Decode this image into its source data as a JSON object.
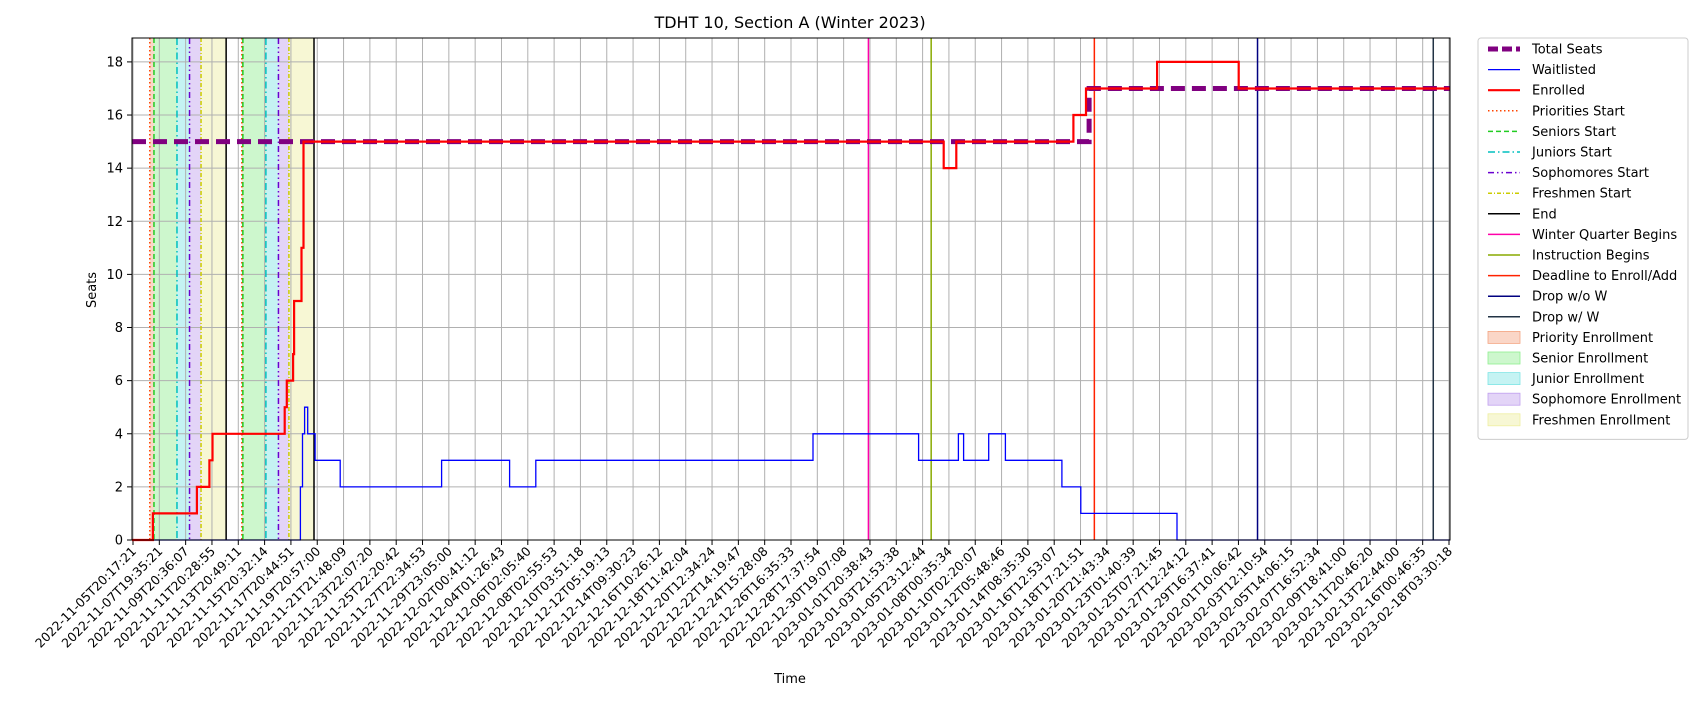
{
  "chart_data": {
    "type": "line",
    "title": "TDHT 10, Section A (Winter 2023)",
    "xlabel": "Time",
    "ylabel": "Seats",
    "xlim": [
      "2022-11-05T08:00:00",
      "2023-02-18T08:00:00"
    ],
    "ylim": [
      0,
      18.9
    ],
    "yticks": [
      0,
      2,
      4,
      6,
      8,
      10,
      12,
      14,
      16,
      18
    ],
    "grid": true,
    "legend_position": "outside-right-top",
    "x_tick_labels": [
      "2022-11-05T20:17:21",
      "2022-11-07T19:35:21",
      "2022-11-09T20:36:07",
      "2022-11-11T20:28:55",
      "2022-11-13T20:49:11",
      "2022-11-15T20:32:14",
      "2022-11-17T20:44:51",
      "2022-11-19T20:57:00",
      "2022-11-21T21:48:09",
      "2022-11-23T22:07:20",
      "2022-11-25T22:20:42",
      "2022-11-27T22:34:53",
      "2022-11-29T23:05:00",
      "2022-12-02T00:41:12",
      "2022-12-04T01:26:43",
      "2022-12-06T02:05:40",
      "2022-12-08T02:55:53",
      "2022-12-10T03:51:18",
      "2022-12-12T05:19:13",
      "2022-12-14T09:30:23",
      "2022-12-16T10:26:12",
      "2022-12-18T11:42:04",
      "2022-12-20T12:34:24",
      "2022-12-22T14:19:47",
      "2022-12-24T15:28:08",
      "2022-12-26T16:35:33",
      "2022-12-28T17:37:54",
      "2022-12-30T19:07:08",
      "2023-01-01T20:38:43",
      "2023-01-03T21:53:38",
      "2023-01-05T23:12:44",
      "2023-01-08T00:35:34",
      "2023-01-10T02:20:07",
      "2023-01-12T05:48:46",
      "2023-01-14T08:35:30",
      "2023-01-16T12:53:07",
      "2023-01-18T17:21:51",
      "2023-01-20T21:43:34",
      "2023-01-23T01:40:39",
      "2023-01-25T07:21:45",
      "2023-01-27T12:24:12",
      "2023-01-29T16:37:41",
      "2023-02-01T10:06:42",
      "2023-02-03T12:10:54",
      "2023-02-05T14:06:15",
      "2023-02-07T16:52:34",
      "2023-02-09T18:41:00",
      "2023-02-11T20:46:20",
      "2023-02-13T22:44:00",
      "2023-02-16T00:46:35",
      "2023-02-18T03:30:18"
    ],
    "series": [
      {
        "name": "Total Seats",
        "color": "#800080",
        "style": "dashed-thick",
        "points": [
          [
            "2022-11-05T08:00:00",
            15
          ],
          [
            "2023-01-20T14:00:00",
            15
          ],
          [
            "2023-01-20T14:00:00",
            17
          ],
          [
            "2023-02-18T08:00:00",
            17
          ]
        ]
      },
      {
        "name": "Waitlisted",
        "color": "#0000ff",
        "style": "solid",
        "points": [
          [
            "2022-11-05T08:00:00",
            0
          ],
          [
            "2022-11-18T18:00:00",
            0
          ],
          [
            "2022-11-18T18:00:00",
            2
          ],
          [
            "2022-11-18T22:00:00",
            2
          ],
          [
            "2022-11-18T22:00:00",
            4
          ],
          [
            "2022-11-19T02:00:00",
            4
          ],
          [
            "2022-11-19T02:00:00",
            5
          ],
          [
            "2022-11-19T08:00:00",
            5
          ],
          [
            "2022-11-19T08:00:00",
            4
          ],
          [
            "2022-11-19T22:00:00",
            4
          ],
          [
            "2022-11-19T22:00:00",
            3
          ],
          [
            "2022-11-21T22:00:00",
            3
          ],
          [
            "2022-11-21T22:00:00",
            2
          ],
          [
            "2022-11-30T00:00:00",
            2
          ],
          [
            "2022-11-30T00:00:00",
            3
          ],
          [
            "2022-12-05T10:00:00",
            3
          ],
          [
            "2022-12-05T10:00:00",
            2
          ],
          [
            "2022-12-07T12:00:00",
            2
          ],
          [
            "2022-12-07T12:00:00",
            3
          ],
          [
            "2022-12-29T14:00:00",
            3
          ],
          [
            "2022-12-29T14:00:00",
            4
          ],
          [
            "2023-01-07T00:00:00",
            4
          ],
          [
            "2023-01-07T00:00:00",
            3
          ],
          [
            "2023-01-10T04:00:00",
            3
          ],
          [
            "2023-01-10T04:00:00",
            4
          ],
          [
            "2023-01-10T14:00:00",
            4
          ],
          [
            "2023-01-10T14:00:00",
            3
          ],
          [
            "2023-01-12T14:00:00",
            3
          ],
          [
            "2023-01-12T14:00:00",
            4
          ],
          [
            "2023-01-13T22:00:00",
            4
          ],
          [
            "2023-01-13T22:00:00",
            3
          ],
          [
            "2023-01-18T10:00:00",
            3
          ],
          [
            "2023-01-18T10:00:00",
            2
          ],
          [
            "2023-01-19T22:00:00",
            2
          ],
          [
            "2023-01-19T22:00:00",
            1
          ],
          [
            "2023-01-27T14:00:00",
            1
          ],
          [
            "2023-01-27T14:00:00",
            0
          ],
          [
            "2023-02-18T08:00:00",
            0
          ]
        ]
      },
      {
        "name": "Enrolled",
        "color": "#ff0000",
        "style": "solid-thick",
        "points": [
          [
            "2022-11-05T08:00:00",
            0
          ],
          [
            "2022-11-07T00:00:00",
            0
          ],
          [
            "2022-11-07T00:00:00",
            1
          ],
          [
            "2022-11-10T12:00:00",
            1
          ],
          [
            "2022-11-10T12:00:00",
            2
          ],
          [
            "2022-11-11T12:00:00",
            2
          ],
          [
            "2022-11-11T12:00:00",
            3
          ],
          [
            "2022-11-11T18:00:00",
            3
          ],
          [
            "2022-11-11T18:00:00",
            4
          ],
          [
            "2022-11-17T12:00:00",
            4
          ],
          [
            "2022-11-17T12:00:00",
            5
          ],
          [
            "2022-11-17T16:00:00",
            5
          ],
          [
            "2022-11-17T16:00:00",
            6
          ],
          [
            "2022-11-18T04:00:00",
            6
          ],
          [
            "2022-11-18T04:00:00",
            7
          ],
          [
            "2022-11-18T06:00:00",
            7
          ],
          [
            "2022-11-18T06:00:00",
            9
          ],
          [
            "2022-11-18T20:00:00",
            9
          ],
          [
            "2022-11-18T20:00:00",
            11
          ],
          [
            "2022-11-19T00:00:00",
            11
          ],
          [
            "2022-11-19T00:00:00",
            15
          ],
          [
            "2023-01-09T00:00:00",
            15
          ],
          [
            "2023-01-09T00:00:00",
            14
          ],
          [
            "2023-01-10T00:00:00",
            14
          ],
          [
            "2023-01-10T00:00:00",
            15
          ],
          [
            "2023-01-19T08:00:00",
            15
          ],
          [
            "2023-01-19T08:00:00",
            16
          ],
          [
            "2023-01-20T08:00:00",
            16
          ],
          [
            "2023-01-20T08:00:00",
            17
          ],
          [
            "2023-01-26T00:00:00",
            17
          ],
          [
            "2023-01-26T00:00:00",
            18
          ],
          [
            "2023-02-01T12:00:00",
            18
          ],
          [
            "2023-02-01T12:00:00",
            17
          ],
          [
            "2023-02-18T08:00:00",
            17
          ]
        ]
      }
    ],
    "vlines": [
      {
        "name": "Priorities Start",
        "color": "#ff4500",
        "style": "dotted",
        "dates": [
          "2022-11-06T18:00:00",
          "2022-11-14T02:00:00"
        ]
      },
      {
        "name": "Seniors Start",
        "color": "#22cc22",
        "style": "dashed",
        "dates": [
          "2022-11-07T02:00:00",
          "2022-11-14T04:00:00"
        ]
      },
      {
        "name": "Juniors Start",
        "color": "#00bfbf",
        "style": "dashdot",
        "dates": [
          "2022-11-08T22:00:00",
          "2022-11-16T00:00:00"
        ]
      },
      {
        "name": "Sophomores Start",
        "color": "#6a00d0",
        "style": "dashdotdot",
        "dates": [
          "2022-11-09T22:00:00",
          "2022-11-17T00:00:00"
        ]
      },
      {
        "name": "Freshmen Start",
        "color": "#cccc00",
        "style": "dashdot-fine",
        "dates": [
          "2022-11-10T20:00:00",
          "2022-11-17T20:00:00"
        ]
      },
      {
        "name": "End",
        "color": "#000000",
        "style": "solid",
        "dates": [
          "2022-11-12T20:00:00",
          "2022-11-19T20:00:00"
        ]
      },
      {
        "name": "Winter Quarter Begins",
        "color": "#ff00aa",
        "style": "solid",
        "dates": [
          "2023-01-03T00:00:00"
        ]
      },
      {
        "name": "Instruction Begins",
        "color": "#88aa00",
        "style": "solid",
        "dates": [
          "2023-01-08T00:00:00"
        ]
      },
      {
        "name": "Deadline to Enroll/Add",
        "color": "#ff2200",
        "style": "solid",
        "dates": [
          "2023-01-21T00:00:00"
        ]
      },
      {
        "name": "Drop w/o W",
        "color": "#000080",
        "style": "solid",
        "dates": [
          "2023-02-03T00:00:00"
        ]
      },
      {
        "name": "Drop w/ W",
        "color": "#223344",
        "style": "solid",
        "dates": [
          "2023-02-17T00:00:00"
        ]
      }
    ],
    "spans": [
      {
        "name": "Priority Enrollment",
        "color": "#f4a582",
        "ranges": [
          [
            "2022-11-06T18:00:00",
            "2022-11-07T02:00:00"
          ],
          [
            "2022-11-14T02:00:00",
            "2022-11-14T04:00:00"
          ]
        ]
      },
      {
        "name": "Senior Enrollment",
        "color": "#90ee90",
        "ranges": [
          [
            "2022-11-07T02:00:00",
            "2022-11-08T22:00:00"
          ],
          [
            "2022-11-14T04:00:00",
            "2022-11-16T00:00:00"
          ]
        ]
      },
      {
        "name": "Junior Enrollment",
        "color": "#7fe5e5",
        "ranges": [
          [
            "2022-11-08T22:00:00",
            "2022-11-09T22:00:00"
          ],
          [
            "2022-11-16T00:00:00",
            "2022-11-17T00:00:00"
          ]
        ]
      },
      {
        "name": "Sophomore Enrollment",
        "color": "#c0a0ee",
        "ranges": [
          [
            "2022-11-09T22:00:00",
            "2022-11-10T20:00:00"
          ],
          [
            "2022-11-17T00:00:00",
            "2022-11-17T20:00:00"
          ]
        ]
      },
      {
        "name": "Freshmen Enrollment",
        "color": "#eeeea0",
        "ranges": [
          [
            "2022-11-10T20:00:00",
            "2022-11-12T20:00:00"
          ],
          [
            "2022-11-17T20:00:00",
            "2022-11-19T20:00:00"
          ]
        ]
      }
    ]
  }
}
